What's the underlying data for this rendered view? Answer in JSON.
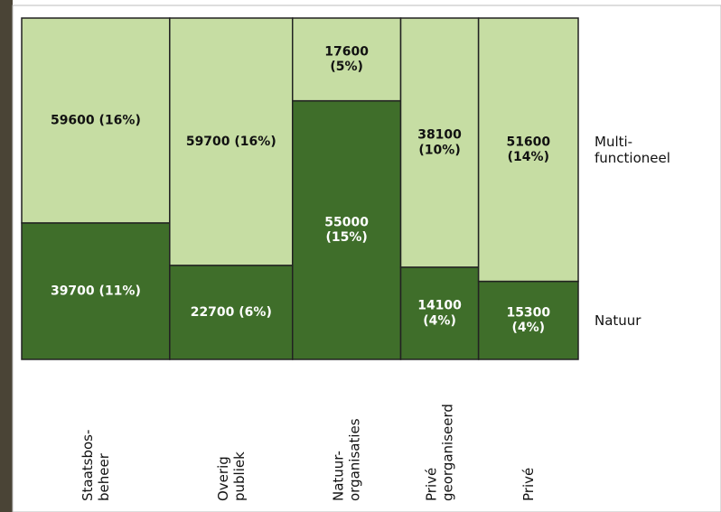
{
  "chart_data": {
    "type": "mosaic",
    "categories": [
      "Staatsbos-\nbeheer",
      "Overig\npubliek",
      "Natuur-\norganisaties",
      "Privé\ngeorganiseerd",
      "Privé"
    ],
    "series": [
      {
        "name": "Natuur",
        "color": "#3f6e2a",
        "values": [
          39700,
          22700,
          55000,
          14100,
          15300
        ],
        "value_labels": [
          "39700 (11%)",
          "22700 (6%)",
          "55000\n(15%)",
          "14100\n(4%)",
          "15300\n(4%)"
        ]
      },
      {
        "name": "Multi-\nfunctioneel",
        "color": "#c6dda3",
        "values": [
          59600,
          59700,
          17600,
          38100,
          51600
        ],
        "value_labels": [
          "59600 (16%)",
          "59700 (16%)",
          "17600\n(5%)",
          "38100\n(10%)",
          "51600\n(14%)"
        ]
      }
    ]
  }
}
